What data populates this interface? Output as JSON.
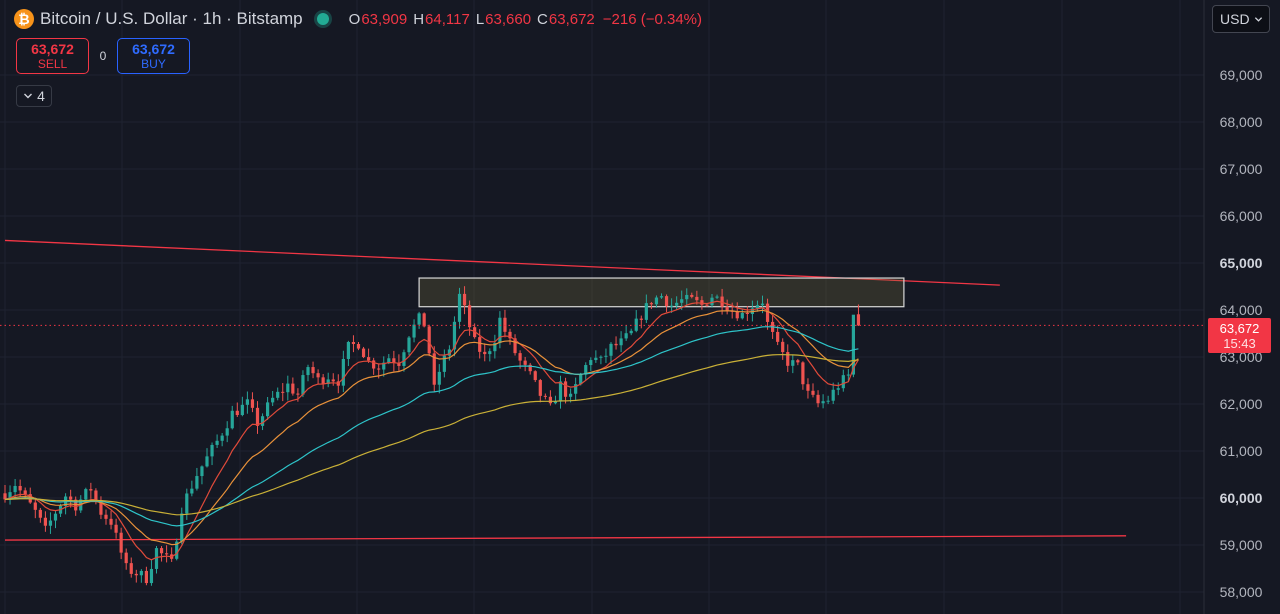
{
  "symbol": {
    "title": "Bitcoin / U.S. Dollar · 1h · Bitstamp",
    "icon": "bitcoin-icon",
    "icon_glyph": "₿",
    "open_key": "O",
    "open": "63,909",
    "high_key": "H",
    "high": "64,117",
    "low_key": "L",
    "low": "63,660",
    "close_key": "C",
    "close": "63,672",
    "change": "−216 (−0.34%)"
  },
  "trade": {
    "sell_price": "63,672",
    "sell_label": "SELL",
    "spread": "0",
    "buy_price": "63,672",
    "buy_label": "BUY"
  },
  "indicators_toggle": {
    "count": "4"
  },
  "currency": {
    "selected": "USD"
  },
  "price_axis": {
    "ticks": [
      {
        "value": 69000,
        "label": "69,000",
        "bold": false
      },
      {
        "value": 68000,
        "label": "68,000",
        "bold": false
      },
      {
        "value": 67000,
        "label": "67,000",
        "bold": false
      },
      {
        "value": 66000,
        "label": "66,000",
        "bold": false
      },
      {
        "value": 65000,
        "label": "65,000",
        "bold": true
      },
      {
        "value": 64000,
        "label": "64,000",
        "bold": false
      },
      {
        "value": 63000,
        "label": "63,000",
        "bold": false
      },
      {
        "value": 62000,
        "label": "62,000",
        "bold": false
      },
      {
        "value": 61000,
        "label": "61,000",
        "bold": false
      },
      {
        "value": 60000,
        "label": "60,000",
        "bold": true
      },
      {
        "value": 59000,
        "label": "59,000",
        "bold": false
      },
      {
        "value": 58000,
        "label": "58,000",
        "bold": false
      }
    ]
  },
  "last_price": {
    "value": 63672,
    "label": "63,672",
    "countdown": "15:43"
  },
  "colors": {
    "background": "#151823",
    "up": "#26a69a",
    "down": "#ef5350",
    "ma_red": "#e04a3a",
    "ma_orange": "#e8913a",
    "ma_teal": "#2ec4c9",
    "ma_yellow": "#c9b037",
    "trendline": "#f23645",
    "grid": "#1f2230"
  },
  "chart_data": {
    "type": "candlestick",
    "timeframe": "1h",
    "ylim": [
      57750,
      69600
    ],
    "candles": {
      "anchors": [
        [
          0,
          60100
        ],
        [
          2,
          60300
        ],
        [
          6,
          59700
        ],
        [
          8,
          59300
        ],
        [
          10,
          59700
        ],
        [
          12,
          60050
        ],
        [
          14,
          59850
        ],
        [
          17,
          60200
        ],
        [
          19,
          59700
        ],
        [
          21,
          59500
        ],
        [
          24,
          58500
        ],
        [
          28,
          58300
        ],
        [
          30,
          58900
        ],
        [
          33,
          58600
        ],
        [
          35,
          59800
        ],
        [
          38,
          60500
        ],
        [
          42,
          61200
        ],
        [
          45,
          61800
        ],
        [
          48,
          62000
        ],
        [
          50,
          61600
        ],
        [
          53,
          62100
        ],
        [
          56,
          62400
        ],
        [
          58,
          62200
        ],
        [
          60,
          62800
        ],
        [
          62,
          62500
        ],
        [
          64,
          62600
        ],
        [
          66,
          62500
        ],
        [
          68,
          63200
        ],
        [
          70,
          63300
        ],
        [
          72,
          62900
        ],
        [
          74,
          62800
        ],
        [
          76,
          63000
        ],
        [
          78,
          62900
        ],
        [
          80,
          63500
        ],
        [
          82,
          63800
        ],
        [
          83,
          63700
        ],
        [
          84,
          63100
        ],
        [
          85,
          62300
        ],
        [
          86,
          62700
        ],
        [
          88,
          63200
        ],
        [
          90,
          64300
        ],
        [
          91,
          64000
        ],
        [
          93,
          63300
        ],
        [
          95,
          63000
        ],
        [
          97,
          63400
        ],
        [
          98,
          63800
        ],
        [
          100,
          63300
        ],
        [
          102,
          62900
        ],
        [
          104,
          62600
        ],
        [
          106,
          62200
        ],
        [
          108,
          61900
        ],
        [
          110,
          62400
        ],
        [
          112,
          62100
        ],
        [
          114,
          62600
        ],
        [
          116,
          63000
        ],
        [
          118,
          62900
        ],
        [
          120,
          63200
        ],
        [
          122,
          63300
        ],
        [
          124,
          63500
        ],
        [
          126,
          63900
        ],
        [
          128,
          64200
        ],
        [
          130,
          64300
        ],
        [
          132,
          64100
        ],
        [
          134,
          64200
        ],
        [
          136,
          64200
        ],
        [
          138,
          64100
        ],
        [
          140,
          64300
        ],
        [
          142,
          64200
        ],
        [
          144,
          64000
        ],
        [
          146,
          63900
        ],
        [
          148,
          64100
        ],
        [
          150,
          64200
        ],
        [
          151,
          63700
        ],
        [
          153,
          63200
        ],
        [
          155,
          62900
        ],
        [
          157,
          62800
        ],
        [
          159,
          62200
        ],
        [
          161,
          62000
        ],
        [
          163,
          62100
        ],
        [
          165,
          62400
        ],
        [
          167,
          62600
        ],
        [
          168,
          62900
        ],
        [
          169,
          63700
        ]
      ]
    },
    "moving_averages": [
      {
        "color": "ma_red",
        "period": 9
      },
      {
        "color": "ma_orange",
        "period": 20
      },
      {
        "color": "ma_teal",
        "period": 50
      },
      {
        "color": "ma_yellow",
        "period": 100
      }
    ],
    "trendlines": [
      {
        "from": [
          0,
          65480
        ],
        "to": [
          197,
          64530
        ]
      },
      {
        "from": [
          0,
          59105
        ],
        "to": [
          222,
          59195
        ]
      }
    ],
    "zone": {
      "x_from": 82,
      "x_to": 178,
      "y_from": 64070,
      "y_to": 64680
    },
    "last_price_line": 63672
  }
}
